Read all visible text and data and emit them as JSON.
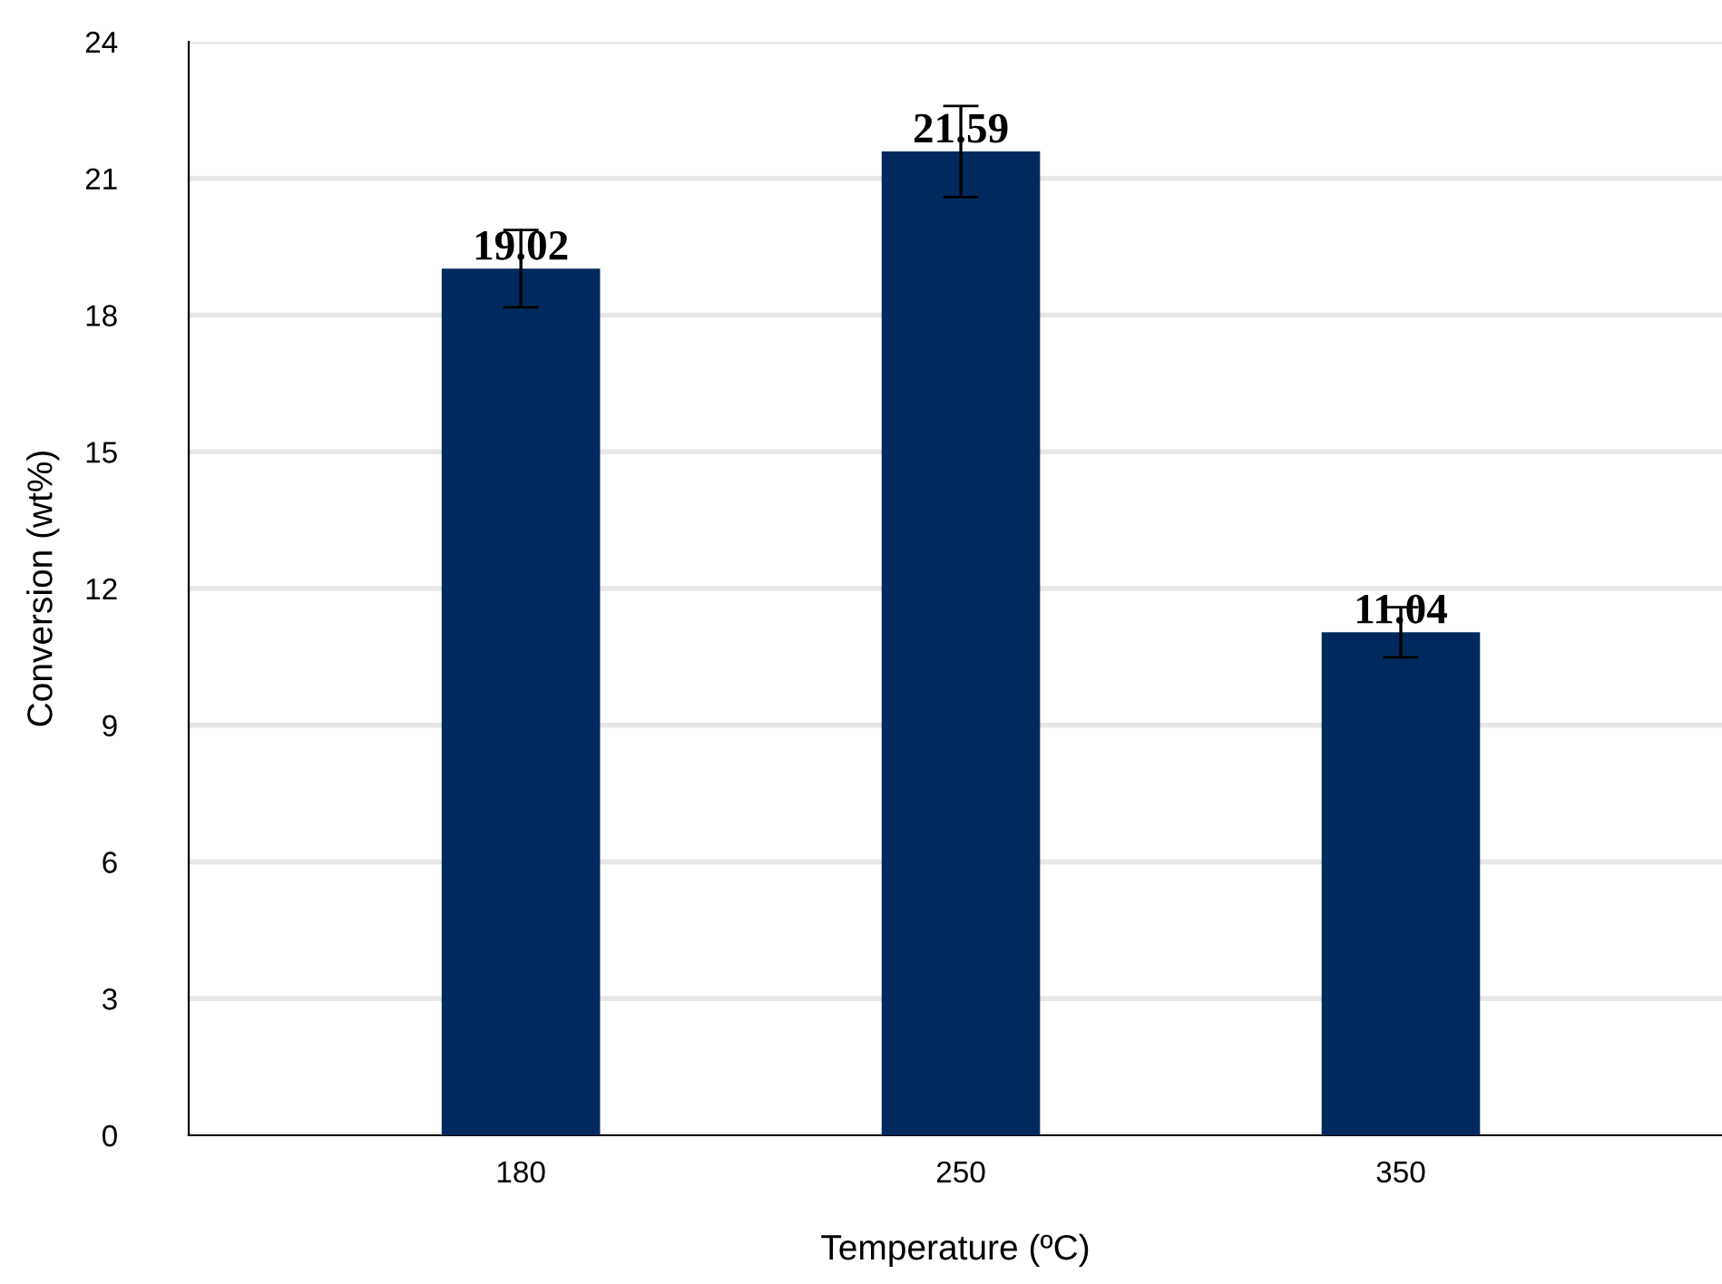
{
  "chart_data": {
    "type": "bar",
    "xlabel": "Temperature (ºC)",
    "ylabel": "Conversion (wt%)",
    "categories": [
      "180",
      "250",
      "350"
    ],
    "series": [
      {
        "color": "#002a5e",
        "values": [
          19.02,
          21.59,
          11.04
        ],
        "errors": [
          0.85,
          1.0,
          0.55
        ]
      }
    ],
    "data_labels": true,
    "ylim": [
      0,
      24
    ],
    "yticks": [
      0,
      3,
      6,
      9,
      12,
      15,
      18,
      21,
      24
    ],
    "grid": "y",
    "legend": false
  }
}
